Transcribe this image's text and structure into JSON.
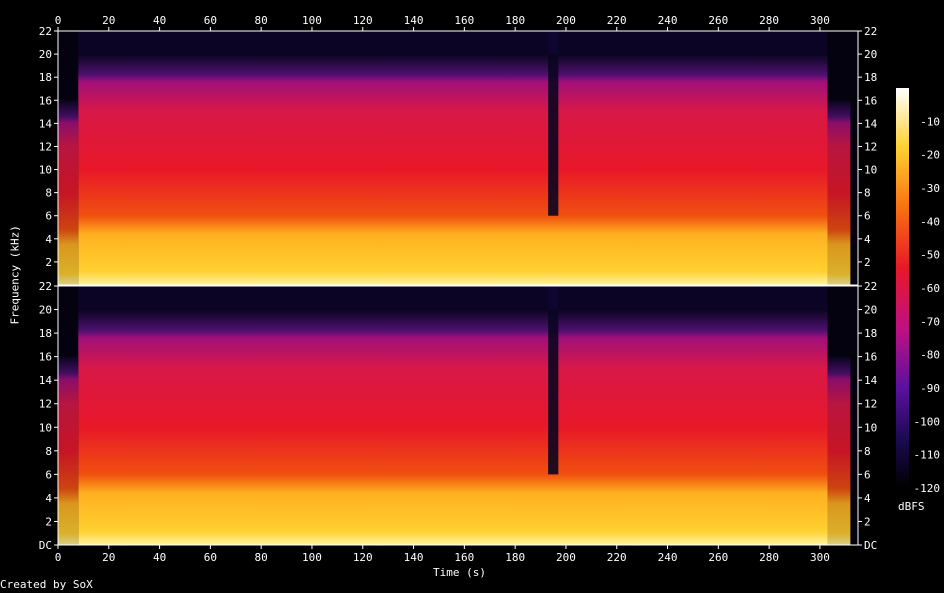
{
  "chart_data": {
    "type": "heatmap",
    "title": "",
    "xlabel": "Time (s)",
    "ylabel": "Frequency (kHz)",
    "xlim": [
      0,
      315
    ],
    "ylim": [
      0,
      22
    ],
    "x_ticks": [
      "0",
      "20",
      "40",
      "60",
      "80",
      "100",
      "120",
      "140",
      "160",
      "180",
      "200",
      "220",
      "240",
      "260",
      "280",
      "300"
    ],
    "y_ticks_top": [
      "2",
      "4",
      "6",
      "8",
      "10",
      "12",
      "14",
      "16",
      "18",
      "20",
      "22"
    ],
    "y_ticks_bottom": [
      "DC",
      "2",
      "4",
      "6",
      "8",
      "10",
      "12",
      "14",
      "16",
      "18",
      "20",
      "22"
    ],
    "colorbar": {
      "label": "dBFS",
      "range": [
        -120,
        0
      ],
      "ticks": [
        "-10",
        "-20",
        "-30",
        "-40",
        "-50",
        "-60",
        "-70",
        "-80",
        "-90",
        "-100",
        "-110",
        "-120"
      ]
    },
    "channels": [
      "Channel 1",
      "Channel 2"
    ],
    "description_values": {
      "audio_start_s": 8,
      "audio_end_s": 303,
      "content_cutoff_khz": 20,
      "quiet_gap_s": [
        193,
        197
      ]
    }
  },
  "footer": {
    "credit": "Created by SoX"
  }
}
